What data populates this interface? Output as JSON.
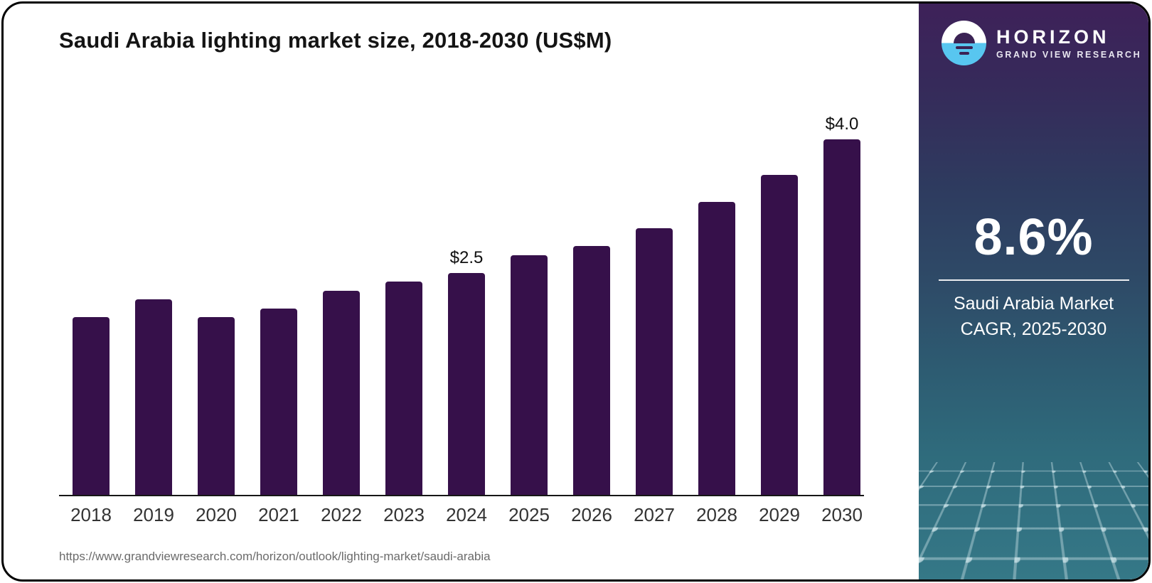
{
  "title": "Saudi Arabia lighting market size, 2018-2030 (US$M)",
  "source_url": "https://www.grandviewresearch.com/horizon/outlook/lighting-market/saudi-arabia",
  "brand": {
    "name": "HORIZON",
    "subtitle": "GRAND VIEW RESEARCH",
    "logo_icon": "horizon-sunset-logo"
  },
  "panel": {
    "stat_value": "8.6%",
    "stat_label_line1": "Saudi Arabia Market",
    "stat_label_line2": "CAGR, 2025-2030"
  },
  "colors": {
    "bar": "#36104A",
    "axis_line": "#161616",
    "title_text": "#141414",
    "axis_text": "#333333",
    "url_text": "#6B6B6B",
    "panel_top": "#3E2159",
    "panel_mid": "#2E4163",
    "panel_bottom": "#357887",
    "logo_blue": "#58C6F0",
    "mesh_line": "#A8C8D0"
  },
  "chart_data": {
    "type": "bar",
    "title": "Saudi Arabia lighting market size, 2018-2030 (US$M)",
    "unit": "US$M",
    "categories": [
      "2018",
      "2019",
      "2020",
      "2021",
      "2022",
      "2023",
      "2024",
      "2025",
      "2026",
      "2027",
      "2028",
      "2029",
      "2030"
    ],
    "values": [
      2.0,
      2.2,
      2.0,
      2.1,
      2.3,
      2.4,
      2.5,
      2.7,
      2.8,
      3.0,
      3.3,
      3.6,
      4.0
    ],
    "data_labels": {
      "2024": "$2.5",
      "2030": "$4.0"
    },
    "xlabel": "",
    "ylabel": "",
    "ylim": [
      0,
      4.4
    ],
    "grid": false,
    "legend": false,
    "axis_line": true
  }
}
